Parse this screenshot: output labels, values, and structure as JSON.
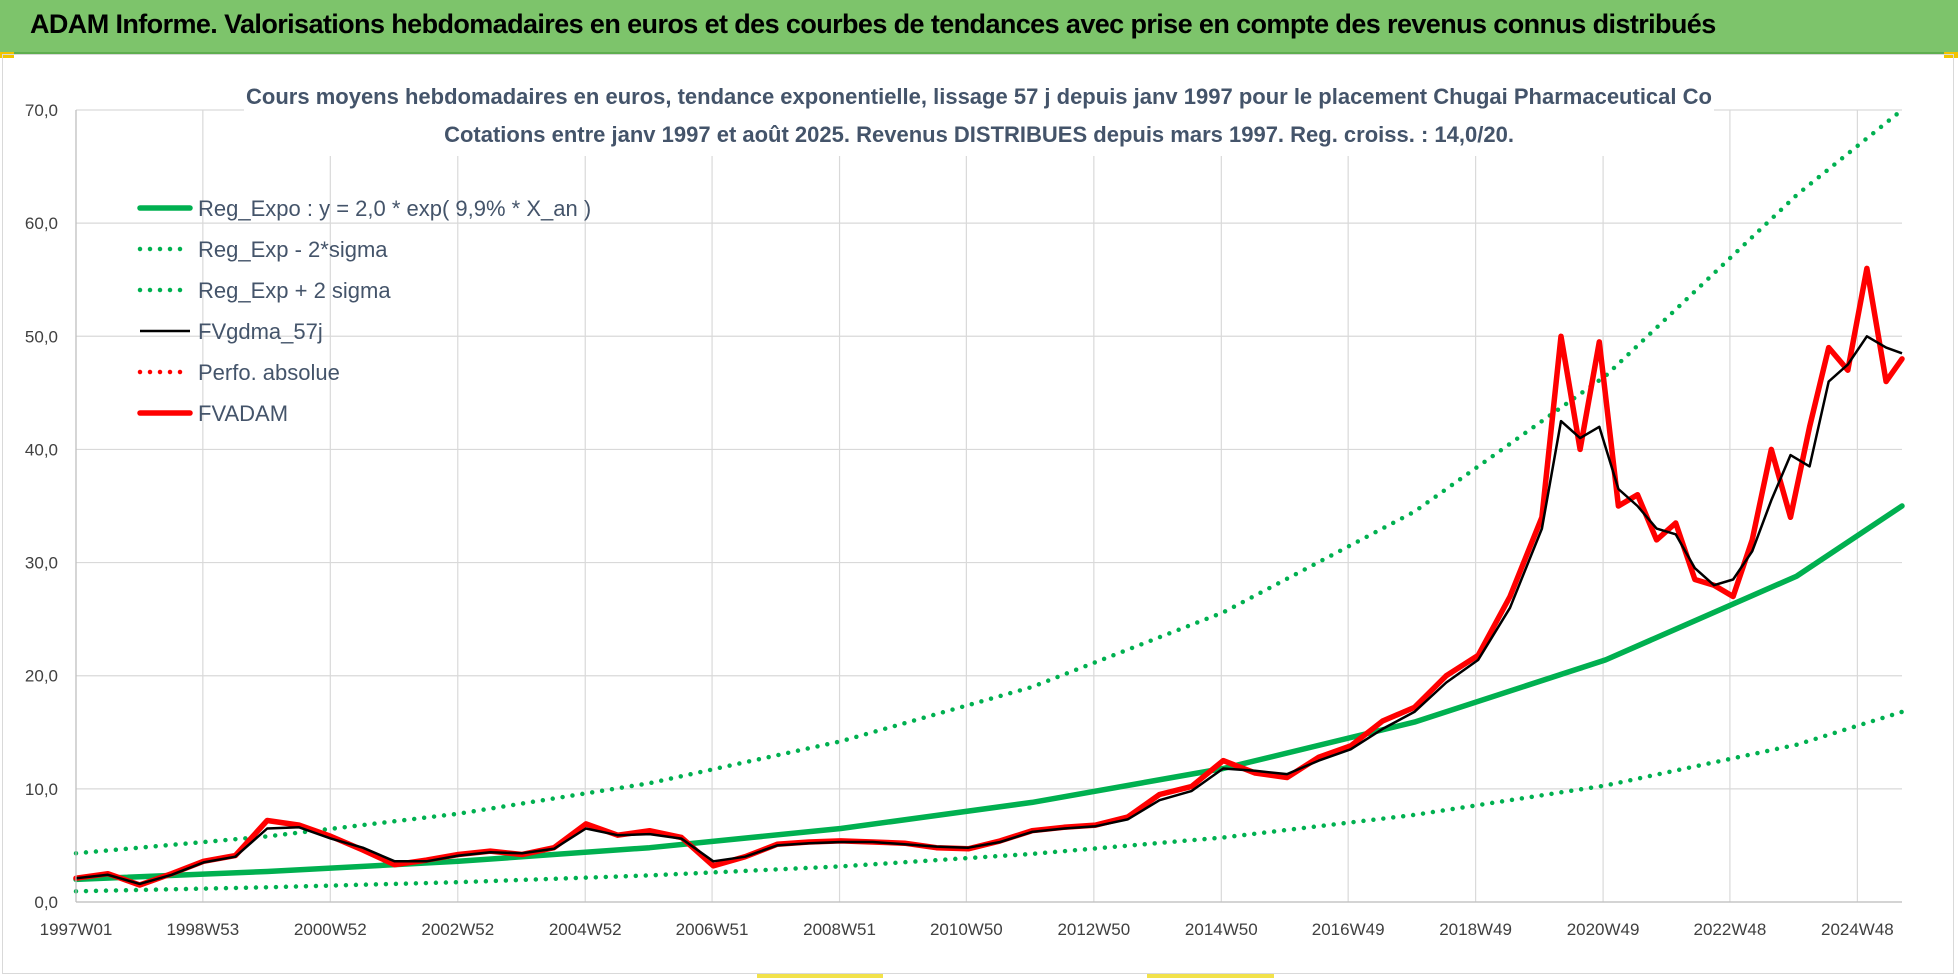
{
  "banner": {
    "title": "ADAM Informe. Valorisations hebdomadaires en euros et des courbes de tendances avec prise en compte des revenus connus distribués"
  },
  "colors": {
    "banner": "#7dc46b",
    "trend": "#00b050",
    "smooth": "#000000",
    "adam": "#ff0000",
    "perf": "#ff0000",
    "text": "#44546a",
    "grid": "#d9d9d9"
  },
  "chart_data": {
    "type": "line",
    "title": "Cours moyens hebdomadaires en euros, tendance exponentielle, lissage 57 j depuis janv 1997 pour le placement Chugai Pharmaceutical Co",
    "subtitle": "Cotations entre janv 1997 et août 2025. Revenus DISTRIBUES depuis mars 1997. Reg. croiss. : 14,0/20.",
    "xlabel": "",
    "ylabel": "",
    "ylim": [
      0,
      70
    ],
    "xlim": [
      1997.0,
      2025.65
    ],
    "grid": true,
    "legend_position": "top-left",
    "y_ticks": [
      "0,0",
      "10,0",
      "20,0",
      "30,0",
      "40,0",
      "50,0",
      "60,0",
      "70,0"
    ],
    "x_ticks": [
      {
        "x": 1997.0,
        "label": "1997W01"
      },
      {
        "x": 1998.99,
        "label": "1998W53"
      },
      {
        "x": 2000.99,
        "label": "2000W52"
      },
      {
        "x": 2002.99,
        "label": "2002W52"
      },
      {
        "x": 2004.99,
        "label": "2004W52"
      },
      {
        "x": 2006.98,
        "label": "2006W51"
      },
      {
        "x": 2008.98,
        "label": "2008W51"
      },
      {
        "x": 2010.97,
        "label": "2010W50"
      },
      {
        "x": 2012.97,
        "label": "2012W50"
      },
      {
        "x": 2014.97,
        "label": "2014W50"
      },
      {
        "x": 2016.96,
        "label": "2016W49"
      },
      {
        "x": 2018.96,
        "label": "2018W49"
      },
      {
        "x": 2020.96,
        "label": "2020W49"
      },
      {
        "x": 2022.95,
        "label": "2022W48"
      },
      {
        "x": 2024.95,
        "label": "2024W48"
      }
    ],
    "series": [
      {
        "name": "Reg_Expo : y = 2,0 * exp( 9,9% *  X_an )",
        "style": "solid-thick",
        "color": "#00b050",
        "x": [
          1997.0,
          2000.0,
          2003.0,
          2006.0,
          2009.0,
          2012.0,
          2015.0,
          2018.0,
          2021.0,
          2024.0,
          2025.65
        ],
        "values": [
          2.0,
          2.7,
          3.6,
          4.8,
          6.5,
          8.8,
          11.8,
          15.9,
          21.4,
          28.8,
          35.0
        ]
      },
      {
        "name": "Reg_Exp - 2*sigma",
        "style": "dotted",
        "color": "#00b050",
        "x": [
          1997.0,
          2000.0,
          2003.0,
          2006.0,
          2009.0,
          2012.0,
          2015.0,
          2018.0,
          2021.0,
          2024.0,
          2025.65
        ],
        "values": [
          0.95,
          1.3,
          1.75,
          2.35,
          3.15,
          4.25,
          5.7,
          7.7,
          10.3,
          13.9,
          16.8
        ]
      },
      {
        "name": "Reg_Exp + 2 sigma",
        "style": "dotted",
        "color": "#00b050",
        "x": [
          1997.0,
          2000.0,
          2003.0,
          2006.0,
          2009.0,
          2012.0,
          2015.0,
          2018.0,
          2021.0,
          2024.0,
          2025.65
        ],
        "values": [
          4.3,
          5.8,
          7.8,
          10.5,
          14.2,
          19.0,
          25.6,
          34.5,
          46.5,
          62.5,
          70.0
        ]
      },
      {
        "name": "FVgdma_57j",
        "style": "solid",
        "color": "#000000",
        "x": [
          1997.0,
          1997.5,
          1998.0,
          1998.5,
          1999.0,
          1999.5,
          2000.0,
          2000.5,
          2001.0,
          2001.5,
          2002.0,
          2002.5,
          2003.0,
          2003.5,
          2004.0,
          2004.5,
          2005.0,
          2005.5,
          2006.0,
          2006.5,
          2007.0,
          2007.5,
          2008.0,
          2008.5,
          2009.0,
          2009.5,
          2010.0,
          2010.5,
          2011.0,
          2011.5,
          2012.0,
          2012.5,
          2013.0,
          2013.5,
          2014.0,
          2014.5,
          2015.0,
          2015.5,
          2016.0,
          2016.5,
          2017.0,
          2017.5,
          2018.0,
          2018.5,
          2019.0,
          2019.5,
          2020.0,
          2020.3,
          2020.6,
          2020.9,
          2021.2,
          2021.5,
          2021.8,
          2022.1,
          2022.4,
          2022.7,
          2023.0,
          2023.3,
          2023.6,
          2023.9,
          2024.2,
          2024.5,
          2024.8,
          2025.1,
          2025.4,
          2025.65
        ],
        "values": [
          2.1,
          2.4,
          1.6,
          2.4,
          3.5,
          4.0,
          6.5,
          6.6,
          5.6,
          4.8,
          3.6,
          3.6,
          4.1,
          4.4,
          4.3,
          4.7,
          6.5,
          5.9,
          6.0,
          5.6,
          3.6,
          4.0,
          5.0,
          5.2,
          5.3,
          5.3,
          5.1,
          4.9,
          4.8,
          5.3,
          6.2,
          6.5,
          6.7,
          7.3,
          9.0,
          9.8,
          11.8,
          11.6,
          11.3,
          12.5,
          13.5,
          15.3,
          16.8,
          19.4,
          21.4,
          26.0,
          33.0,
          42.5,
          41.0,
          42.0,
          36.5,
          35.0,
          33.0,
          32.5,
          29.5,
          28.0,
          28.5,
          31.0,
          35.5,
          39.5,
          38.5,
          46.0,
          47.5,
          50.0,
          49.0,
          48.5
        ]
      },
      {
        "name": "Perfo. absolue",
        "style": "dotted",
        "color": "#ff0000",
        "x": [
          1997.0,
          1997.5,
          1998.0,
          1998.5,
          1999.0,
          1999.5,
          2000.0,
          2000.5,
          2001.0,
          2001.5,
          2002.0,
          2002.5,
          2003.0,
          2003.5,
          2004.0,
          2004.5,
          2005.0,
          2005.5,
          2006.0,
          2006.5,
          2007.0,
          2007.5,
          2008.0,
          2008.5,
          2009.0,
          2009.5,
          2010.0,
          2010.5,
          2011.0,
          2011.5,
          2012.0,
          2012.5,
          2013.0,
          2013.5,
          2014.0,
          2014.5,
          2015.0,
          2015.5,
          2016.0,
          2016.5,
          2017.0,
          2017.5,
          2018.0,
          2018.5,
          2019.0,
          2019.5,
          2020.0,
          2020.3,
          2020.6,
          2020.9,
          2021.2,
          2021.5,
          2021.8,
          2022.1,
          2022.4,
          2022.7,
          2023.0,
          2023.3,
          2023.6,
          2023.9,
          2024.2,
          2024.5,
          2024.8,
          2025.1,
          2025.4,
          2025.65
        ],
        "values": [
          2.1,
          2.5,
          1.5,
          2.5,
          3.6,
          4.1,
          7.2,
          6.8,
          5.8,
          4.6,
          3.3,
          3.7,
          4.2,
          4.5,
          4.2,
          4.8,
          6.9,
          5.9,
          6.3,
          5.7,
          3.2,
          4.0,
          5.1,
          5.3,
          5.4,
          5.3,
          5.2,
          4.8,
          4.7,
          5.4,
          6.3,
          6.6,
          6.8,
          7.5,
          9.5,
          10.2,
          12.5,
          11.4,
          11.0,
          12.8,
          13.8,
          16.0,
          17.2,
          20.0,
          21.8,
          27.0,
          34.0,
          50.0,
          40.0,
          49.5,
          35.0,
          36.0,
          32.0,
          33.5,
          28.5,
          28.0,
          27.0,
          32.0,
          40.0,
          34.0,
          42.0,
          49.0,
          47.0,
          56.0,
          46.0,
          48.0
        ]
      },
      {
        "name": "FVADAM",
        "style": "solid-thick",
        "color": "#ff0000",
        "x": [
          1997.0,
          1997.5,
          1998.0,
          1998.5,
          1999.0,
          1999.5,
          2000.0,
          2000.5,
          2001.0,
          2001.5,
          2002.0,
          2002.5,
          2003.0,
          2003.5,
          2004.0,
          2004.5,
          2005.0,
          2005.5,
          2006.0,
          2006.5,
          2007.0,
          2007.5,
          2008.0,
          2008.5,
          2009.0,
          2009.5,
          2010.0,
          2010.5,
          2011.0,
          2011.5,
          2012.0,
          2012.5,
          2013.0,
          2013.5,
          2014.0,
          2014.5,
          2015.0,
          2015.5,
          2016.0,
          2016.5,
          2017.0,
          2017.5,
          2018.0,
          2018.5,
          2019.0,
          2019.5,
          2020.0,
          2020.3,
          2020.6,
          2020.9,
          2021.2,
          2021.5,
          2021.8,
          2022.1,
          2022.4,
          2022.7,
          2023.0,
          2023.3,
          2023.6,
          2023.9,
          2024.2,
          2024.5,
          2024.8,
          2025.1,
          2025.4,
          2025.65
        ],
        "values": [
          2.1,
          2.5,
          1.5,
          2.5,
          3.6,
          4.1,
          7.2,
          6.8,
          5.8,
          4.6,
          3.3,
          3.7,
          4.2,
          4.5,
          4.2,
          4.8,
          6.9,
          5.9,
          6.3,
          5.7,
          3.2,
          4.0,
          5.1,
          5.3,
          5.4,
          5.3,
          5.2,
          4.8,
          4.7,
          5.4,
          6.3,
          6.6,
          6.8,
          7.5,
          9.5,
          10.2,
          12.5,
          11.4,
          11.0,
          12.8,
          13.8,
          16.0,
          17.2,
          20.0,
          21.8,
          27.0,
          34.0,
          50.0,
          40.0,
          49.5,
          35.0,
          36.0,
          32.0,
          33.5,
          28.5,
          28.0,
          27.0,
          32.0,
          40.0,
          34.0,
          42.0,
          49.0,
          47.0,
          56.0,
          46.0,
          48.0
        ]
      }
    ]
  }
}
